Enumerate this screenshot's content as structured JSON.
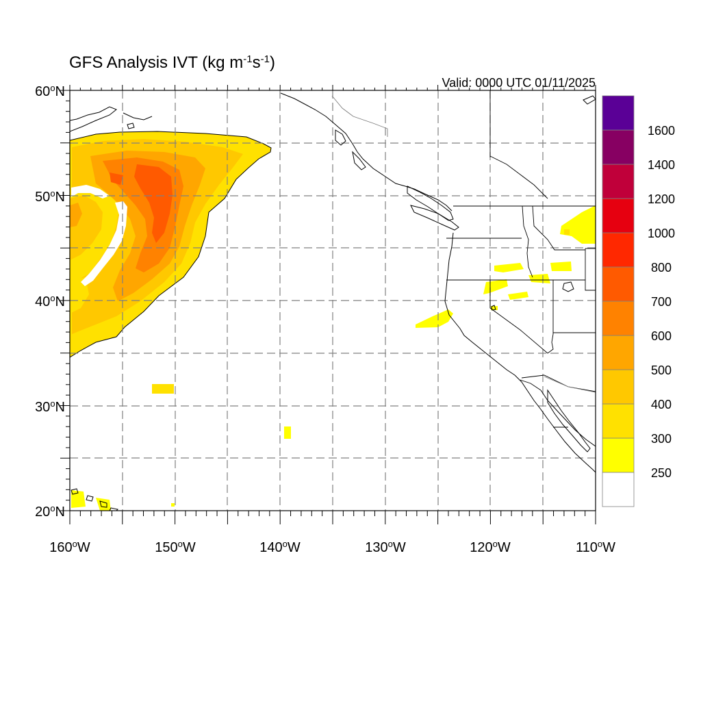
{
  "title": {
    "main": "GFS Analysis IVT (kg m",
    "sup1": "-1",
    "mid": "s",
    "sup2": "-1",
    "end": ")"
  },
  "valid": "Valid: 0000 UTC 01/11/2025",
  "map": {
    "lon_range": [
      -160,
      -110
    ],
    "lat_range": [
      20,
      60
    ],
    "lat_labels": [
      {
        "num": "60",
        "deg": "o",
        "hem": "N"
      },
      {
        "num": "50",
        "deg": "o",
        "hem": "N"
      },
      {
        "num": "40",
        "deg": "o",
        "hem": "N"
      },
      {
        "num": "30",
        "deg": "o",
        "hem": "N"
      },
      {
        "num": "20",
        "deg": "o",
        "hem": "N"
      }
    ],
    "lon_labels": [
      {
        "num": "160",
        "deg": "o",
        "hem": "W"
      },
      {
        "num": "150",
        "deg": "o",
        "hem": "W"
      },
      {
        "num": "140",
        "deg": "o",
        "hem": "W"
      },
      {
        "num": "130",
        "deg": "o",
        "hem": "W"
      },
      {
        "num": "120",
        "deg": "o",
        "hem": "W"
      },
      {
        "num": "110",
        "deg": "o",
        "hem": "W"
      }
    ]
  },
  "colorbar": {
    "labels": [
      "250",
      "300",
      "400",
      "500",
      "600",
      "700",
      "800",
      "1000",
      "1200",
      "1400",
      "1600"
    ],
    "colors": [
      "#ffffff",
      "#ffff00",
      "#ffe100",
      "#ffc800",
      "#ffa600",
      "#ff8200",
      "#ff5a00",
      "#ff2800",
      "#e60010",
      "#c0003a",
      "#870062",
      "#5a0096"
    ]
  }
}
